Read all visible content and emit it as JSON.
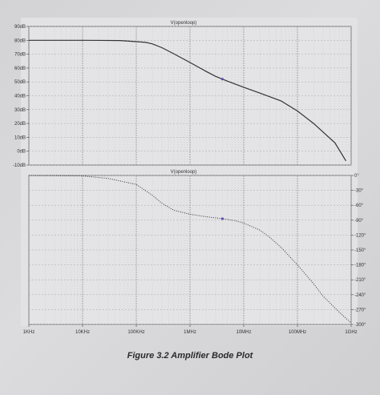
{
  "caption": "Figure 3.2 Amplifier Bode Plot",
  "chart_data": [
    {
      "type": "line",
      "title": "V(openloop)",
      "xlabel": "",
      "ylabel": "",
      "x_scale": "log",
      "xlim": [
        1000,
        1000000000
      ],
      "ylim": [
        -10,
        90
      ],
      "y_ticks": [
        "-10dB",
        "0dB",
        "10dB",
        "20dB",
        "30dB",
        "40dB",
        "50dB",
        "60dB",
        "70dB",
        "80dB",
        "90dB"
      ],
      "grid": true,
      "series": [
        {
          "name": "V(openloop)",
          "style": "solid",
          "color": "#333333",
          "x": [
            1000,
            10000,
            50000,
            100000,
            150000,
            200000,
            300000,
            500000,
            1000000,
            2000000,
            3000000,
            5000000,
            10000000,
            20000000,
            50000000,
            100000000,
            200000000,
            500000000,
            800000000
          ],
          "y": [
            80,
            80,
            79.8,
            79,
            78.5,
            77.4,
            74.7,
            70.3,
            64,
            57.5,
            54,
            50.5,
            46.1,
            41.9,
            36.2,
            29,
            20,
            6,
            -7
          ]
        }
      ]
    },
    {
      "type": "line",
      "title": "V(openloop)",
      "xlabel": "",
      "ylabel": "",
      "x_scale": "log",
      "xlim": [
        1000,
        1000000000
      ],
      "ylim": [
        -300,
        0
      ],
      "x_ticks": [
        "1KHz",
        "10KHz",
        "100KHz",
        "1MHz",
        "10MHz",
        "100MHz",
        "1GHz"
      ],
      "y_ticks": [
        "0°",
        "-30°",
        "-60°",
        "-90°",
        "-120°",
        "-150°",
        "-180°",
        "-210°",
        "-240°",
        "-270°",
        "-300°"
      ],
      "grid": true,
      "series": [
        {
          "name": "V(openloop)",
          "style": "dotted",
          "color": "#333333",
          "x": [
            1000,
            10000,
            30000,
            100000,
            200000,
            300000,
            500000,
            1000000,
            2000000,
            4000000,
            7000000,
            10000000,
            20000000,
            30000000,
            50000000,
            100000000,
            200000000,
            300000000,
            600000000,
            1000000000
          ],
          "y": [
            0,
            -1,
            -6,
            -18,
            -40,
            -56,
            -70,
            -78,
            -83,
            -87,
            -91,
            -96,
            -110,
            -124,
            -145,
            -180,
            -218,
            -243,
            -275,
            -297
          ]
        }
      ]
    }
  ]
}
